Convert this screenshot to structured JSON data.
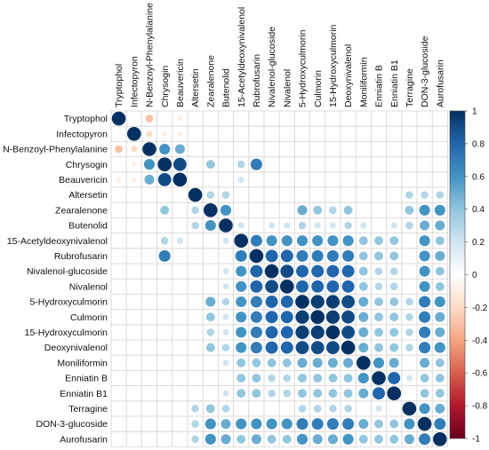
{
  "chart_data": {
    "type": "heatmap",
    "title": "",
    "variables": [
      "Tryptophol",
      "Infectopyron",
      "N-Benzoyl-Phenylalanine",
      "Chrysogin",
      "Beauvericin",
      "Altersetin",
      "Zearalenone",
      "Butenolid",
      "15-Acetyldeoxynivalenol",
      "Rubrofusarin",
      "Nivalenol-glucoside",
      "Nivalenol",
      "5-Hydroxyculmorin",
      "Culmorin",
      "15-Hydroxyculmorin",
      "Deoxynivalenol",
      "Moniliformin",
      "Enniatin B",
      "Enniatin B1",
      "Terragine",
      "DON-3-glucoside",
      "Aurofusarin"
    ],
    "matrix": [
      [
        1.0,
        0,
        -0.3,
        0,
        -0.1,
        0,
        0,
        0,
        0,
        0,
        0,
        0,
        0,
        0,
        0,
        0,
        0,
        0,
        0,
        0,
        0,
        0
      ],
      [
        0,
        1.0,
        -0.2,
        -0.1,
        -0.1,
        0,
        0,
        0,
        0,
        0,
        0,
        0,
        0,
        0,
        0,
        0,
        0,
        0,
        0,
        0,
        0,
        0
      ],
      [
        -0.3,
        -0.2,
        1.0,
        0.6,
        0.5,
        0,
        0,
        0,
        0,
        0,
        0,
        0,
        0,
        0,
        0,
        0,
        0,
        0,
        0,
        0,
        0,
        0
      ],
      [
        0,
        -0.1,
        0.6,
        1.0,
        0.9,
        0,
        0.4,
        0,
        0.3,
        0.7,
        0,
        0,
        0,
        0,
        0,
        0,
        0,
        0,
        0,
        0,
        0,
        0
      ],
      [
        -0.1,
        -0.1,
        0.5,
        0.9,
        1.0,
        0,
        0,
        0,
        0.2,
        0,
        0,
        0,
        0,
        0,
        0,
        0,
        0,
        0,
        0,
        0,
        0,
        0
      ],
      [
        0,
        0,
        0,
        0,
        0,
        1.0,
        0.3,
        0.3,
        0,
        0,
        0,
        0,
        0,
        0,
        0,
        0,
        0,
        0,
        0,
        0.3,
        0.3,
        0.3
      ],
      [
        0,
        0,
        0,
        0.4,
        0,
        0.3,
        1.0,
        0.6,
        0,
        0,
        0,
        0,
        0.5,
        0.4,
        0.3,
        0.4,
        0,
        0,
        0,
        0.4,
        0.6,
        0.6
      ],
      [
        0,
        0,
        0,
        0,
        0,
        0.3,
        0.6,
        1.0,
        0.2,
        0,
        0.2,
        0.2,
        0.3,
        0.2,
        0.2,
        0.3,
        0.2,
        0,
        0.2,
        0.3,
        0.5,
        0.5
      ],
      [
        0,
        0,
        0,
        0.3,
        0.2,
        0,
        0,
        0.2,
        1.0,
        0.7,
        0.6,
        0.6,
        0.6,
        0.6,
        0.6,
        0.6,
        0.4,
        0.4,
        0.4,
        0,
        0.6,
        0.4
      ],
      [
        0,
        0,
        0,
        0.7,
        0,
        0,
        0,
        0,
        0.7,
        1.0,
        0.8,
        0.8,
        0.7,
        0.7,
        0.7,
        0.7,
        0.4,
        0.4,
        0.4,
        0,
        0.6,
        0.5
      ],
      [
        0,
        0,
        0,
        0,
        0,
        0,
        0,
        0.2,
        0.6,
        0.8,
        1.0,
        0.9,
        0.8,
        0.8,
        0.8,
        0.8,
        0.4,
        0.3,
        0.3,
        0,
        0.6,
        0.4
      ],
      [
        0,
        0,
        0,
        0,
        0,
        0,
        0,
        0.2,
        0.6,
        0.8,
        0.9,
        1.0,
        0.8,
        0.8,
        0.8,
        0.8,
        0.4,
        0.3,
        0.3,
        0,
        0.6,
        0.4
      ],
      [
        0,
        0,
        0,
        0,
        0,
        0,
        0.5,
        0.3,
        0.6,
        0.7,
        0.8,
        0.8,
        1.0,
        0.95,
        0.95,
        0.9,
        0.5,
        0.4,
        0.4,
        0.3,
        0.7,
        0.6
      ],
      [
        0,
        0,
        0,
        0,
        0,
        0,
        0.4,
        0.2,
        0.6,
        0.7,
        0.8,
        0.8,
        0.95,
        1.0,
        0.95,
        0.9,
        0.5,
        0.4,
        0.4,
        0.3,
        0.7,
        0.5
      ],
      [
        0,
        0,
        0,
        0,
        0,
        0,
        0.3,
        0.2,
        0.6,
        0.7,
        0.8,
        0.8,
        0.95,
        0.95,
        1.0,
        0.9,
        0.5,
        0.4,
        0.4,
        0.3,
        0.7,
        0.5
      ],
      [
        0,
        0,
        0,
        0,
        0,
        0,
        0.4,
        0.3,
        0.6,
        0.7,
        0.8,
        0.8,
        0.9,
        0.9,
        0.9,
        1.0,
        0.5,
        0.4,
        0.4,
        0.3,
        0.7,
        0.6
      ],
      [
        0,
        0,
        0,
        0,
        0,
        0,
        0,
        0.2,
        0.4,
        0.4,
        0.4,
        0.4,
        0.5,
        0.5,
        0.5,
        0.5,
        1.0,
        0.6,
        0.5,
        0,
        0.5,
        0.4
      ],
      [
        0,
        0,
        0,
        0,
        0,
        0,
        0,
        0,
        0.4,
        0.4,
        0.3,
        0.3,
        0.4,
        0.4,
        0.4,
        0.4,
        0.6,
        1.0,
        0.8,
        0.2,
        0.4,
        0.4
      ],
      [
        0,
        0,
        0,
        0,
        0,
        0,
        0,
        0.2,
        0.4,
        0.4,
        0.3,
        0.3,
        0.4,
        0.4,
        0.4,
        0.4,
        0.5,
        0.8,
        1.0,
        0,
        0.4,
        0.4
      ],
      [
        0,
        0,
        0,
        0,
        0,
        0.3,
        0.4,
        0.3,
        0,
        0,
        0,
        0,
        0.3,
        0.3,
        0.3,
        0.3,
        0,
        0.2,
        0,
        1.0,
        0.6,
        0.5
      ],
      [
        0,
        0,
        0,
        0,
        0,
        0.3,
        0.6,
        0.5,
        0.6,
        0.6,
        0.6,
        0.6,
        0.7,
        0.7,
        0.7,
        0.7,
        0.5,
        0.4,
        0.4,
        0.6,
        1.0,
        0.7
      ],
      [
        0,
        0,
        0,
        0,
        0,
        0.3,
        0.6,
        0.5,
        0.4,
        0.5,
        0.4,
        0.4,
        0.6,
        0.5,
        0.5,
        0.6,
        0.4,
        0.4,
        0.4,
        0.5,
        0.7,
        1.0
      ]
    ],
    "colorbar": {
      "range": [
        -1,
        1
      ],
      "ticks": [
        -1,
        -0.8,
        -0.6,
        -0.4,
        -0.2,
        0,
        0.2,
        0.4,
        0.6,
        0.8,
        1
      ],
      "tick_labels": [
        "-1",
        "-0.8",
        "-0.6",
        "-0.4",
        "-0.2",
        "0",
        "0.2",
        "0.4",
        "0.6",
        "0.8",
        "1"
      ],
      "colors": [
        "#67001F",
        "#B2182B",
        "#D6604D",
        "#F4A582",
        "#FDDBC7",
        "#FFFFFF",
        "#D1E5F0",
        "#92C5DE",
        "#4393C3",
        "#2166AC",
        "#053061"
      ]
    },
    "grid": true,
    "legend_position": "right"
  }
}
